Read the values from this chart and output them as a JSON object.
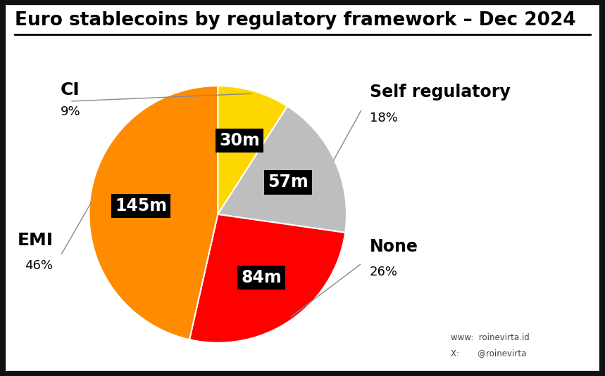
{
  "title": "Euro stablecoins by regulatory framework – Dec 2024",
  "segments": [
    {
      "label": "EMI",
      "pct": 46,
      "value": "145m",
      "color": "#FF8C00"
    },
    {
      "label": "CI",
      "pct": 9,
      "value": "30m",
      "color": "#FFD700"
    },
    {
      "label": "Self regulatory",
      "pct": 18,
      "value": "57m",
      "color": "#BEBEBE"
    },
    {
      "label": "None",
      "pct": 26,
      "value": "84m",
      "color": "#FF0000"
    }
  ],
  "bg_color": "#FFFFFF",
  "border_color": "#111111",
  "title_fontsize": 19,
  "label_fontsize": 16,
  "pct_fontsize": 13,
  "value_fontsize": 17,
  "watermark_www": "roinevirta.id",
  "watermark_x": "@roinevirta"
}
